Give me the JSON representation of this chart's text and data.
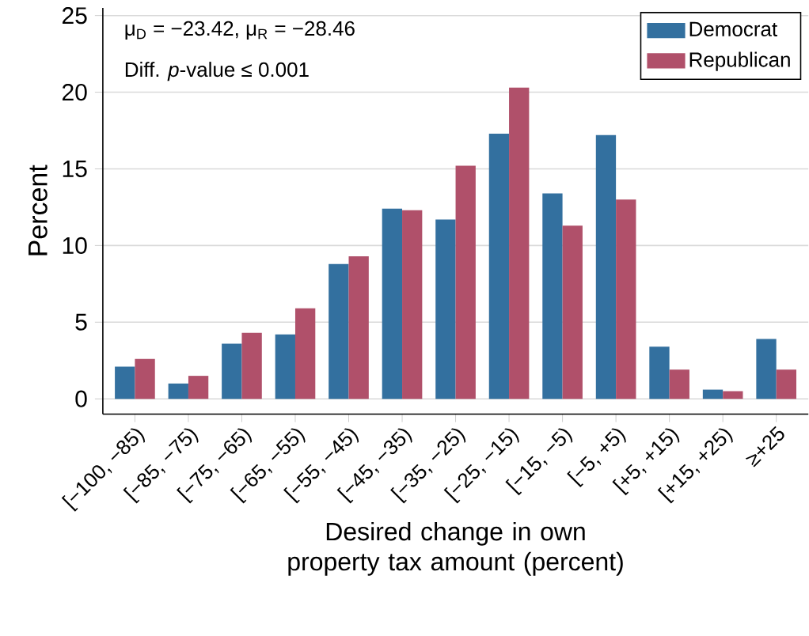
{
  "chart_data": {
    "type": "bar",
    "xlabel": "Desired change in own property tax amount (percent)",
    "ylabel": "Percent",
    "annotations": [
      "μ$_{D}$ = −23.42, μ$_{R}$ = −28.46",
      "Diff. *p*-value ≤ 0.001"
    ],
    "categories": [
      "[−100, −85)",
      "[−85, −75)",
      "[−75, −65)",
      "[−65, −55)",
      "[−55, −45)",
      "[−45, −35)",
      "[−35, −25)",
      "[−25, −15)",
      "[−15, −5)",
      "[−5, +5)",
      "[+5, +15)",
      "[+15, +25)",
      "≥+25"
    ],
    "series": [
      {
        "name": "Democrat",
        "color": "#33709f",
        "values": [
          2.1,
          1.0,
          3.6,
          4.2,
          8.8,
          12.4,
          11.7,
          17.3,
          13.4,
          17.2,
          3.4,
          0.6,
          3.9
        ]
      },
      {
        "name": "Republican",
        "color": "#b0506a",
        "values": [
          2.6,
          1.5,
          4.3,
          5.9,
          9.3,
          12.3,
          15.2,
          20.3,
          11.3,
          13.0,
          1.9,
          0.5,
          1.9
        ]
      }
    ],
    "ylim": [
      -1,
      25.5
    ],
    "yticks": [
      0,
      5,
      10,
      15,
      20,
      25
    ],
    "grid": "y",
    "legend": "top right"
  }
}
